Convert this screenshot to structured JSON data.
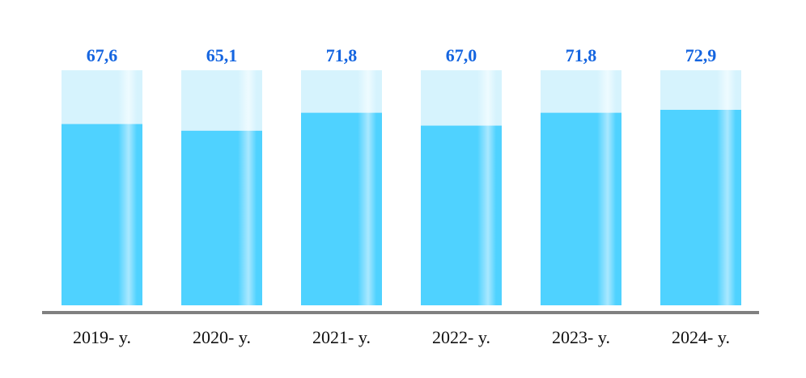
{
  "chart_data": {
    "type": "bar",
    "categories": [
      "2019- y.",
      "2020- y.",
      "2021- y.",
      "2022- y.",
      "2023- y.",
      "2024- y."
    ],
    "values": [
      67.6,
      65.1,
      71.8,
      67.0,
      71.8,
      72.9
    ],
    "value_labels": [
      "67,6",
      "65,1",
      "71,8",
      "67,0",
      "71,8",
      "72,9"
    ],
    "title": "",
    "xlabel": "",
    "ylabel": "",
    "grid": false,
    "legend": "none",
    "colors": {
      "bar": "#4fd2ff",
      "bar_highlight": "#b9ecff",
      "bar_background": "#d6f3fd",
      "value_label": "#1565e0",
      "axis_line": "#808080"
    }
  }
}
